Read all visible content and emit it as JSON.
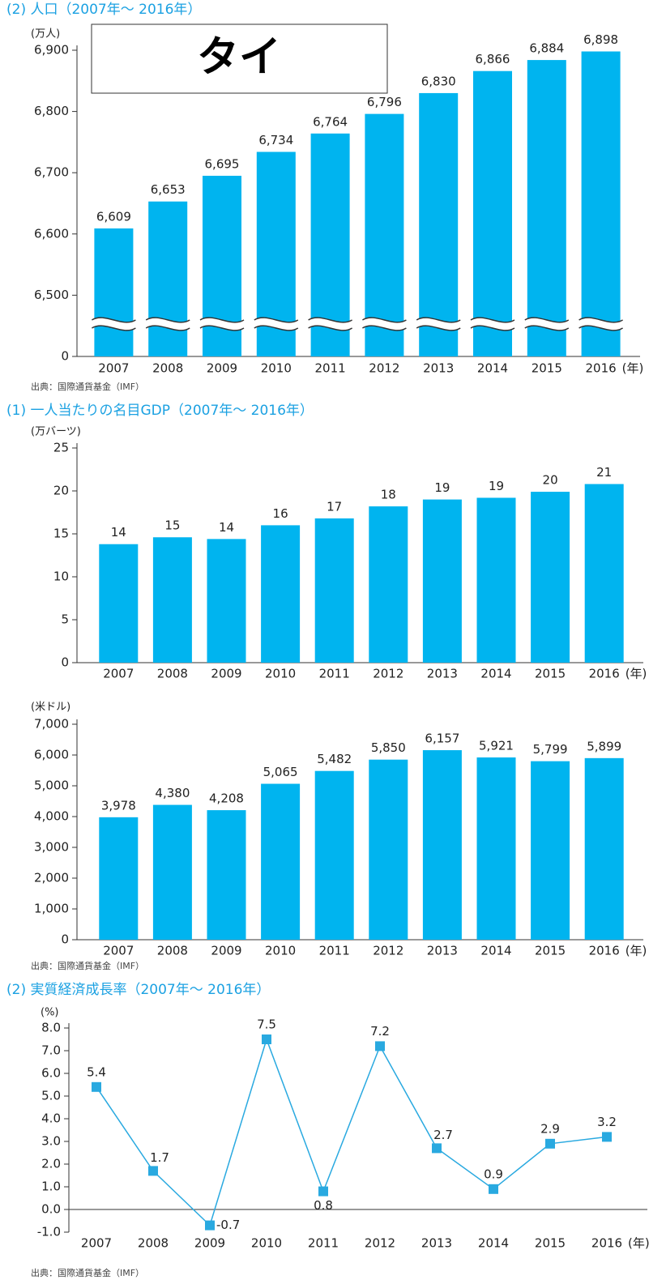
{
  "chart_data": [
    {
      "type": "bar",
      "title": "(2) 人口（2007年～ 2016年）",
      "annotation": "タイ",
      "y_unit": "(万人)",
      "x_unit": "(年)",
      "categories": [
        "2007",
        "2008",
        "2009",
        "2010",
        "2011",
        "2012",
        "2013",
        "2014",
        "2015",
        "2016"
      ],
      "values": [
        6609,
        6653,
        6695,
        6734,
        6764,
        6796,
        6830,
        6866,
        6884,
        6898
      ],
      "value_labels": [
        "6,609",
        "6,653",
        "6,695",
        "6,734",
        "6,764",
        "6,796",
        "6,830",
        "6,866",
        "6,884",
        "6,898"
      ],
      "color": "#00b4ef",
      "axis_break": true,
      "ylim": [
        0,
        6900
      ],
      "yticks": [
        0,
        {
          "value": 6500,
          "label": "6,500"
        },
        {
          "value": 6600,
          "label": "6,600"
        },
        {
          "value": 6700,
          "label": "6,700"
        },
        {
          "value": 6800,
          "label": "6,800"
        },
        {
          "value": 6900,
          "label": "6,900"
        }
      ],
      "source": "出典：国際通貨基金（IMF）"
    },
    {
      "type": "bar",
      "title": "(1) 一人当たりの名目GDP（2007年～ 2016年）",
      "y_unit": "(万バーツ)",
      "x_unit": "(年)",
      "categories": [
        "2007",
        "2008",
        "2009",
        "2010",
        "2011",
        "2012",
        "2013",
        "2014",
        "2015",
        "2016"
      ],
      "values": [
        13.8,
        14.6,
        14.4,
        16.0,
        16.8,
        18.2,
        19.0,
        19.2,
        19.9,
        20.8
      ],
      "value_labels": [
        "14",
        "15",
        "14",
        "16",
        "17",
        "18",
        "19",
        "19",
        "20",
        "21"
      ],
      "color": "#00b4ef",
      "ylim": [
        0,
        25
      ],
      "yticks": [
        0,
        5,
        10,
        15,
        20,
        25
      ]
    },
    {
      "type": "bar",
      "y_unit": "(米ドル)",
      "x_unit": "(年)",
      "categories": [
        "2007",
        "2008",
        "2009",
        "2010",
        "2011",
        "2012",
        "2013",
        "2014",
        "2015",
        "2016"
      ],
      "values": [
        3978,
        4380,
        4208,
        5065,
        5482,
        5850,
        6157,
        5921,
        5799,
        5899
      ],
      "value_labels": [
        "3,978",
        "4,380",
        "4,208",
        "5,065",
        "5,482",
        "5,850",
        "6,157",
        "5,921",
        "5,799",
        "5,899"
      ],
      "color": "#00b4ef",
      "ylim": [
        0,
        7000
      ],
      "yticks": [
        0,
        {
          "value": 1000,
          "label": "1,000"
        },
        {
          "value": 2000,
          "label": "2,000"
        },
        {
          "value": 3000,
          "label": "3,000"
        },
        {
          "value": 4000,
          "label": "4,000"
        },
        {
          "value": 5000,
          "label": "5,000"
        },
        {
          "value": 6000,
          "label": "6,000"
        },
        {
          "value": 7000,
          "label": "7,000"
        }
      ],
      "source": "出典：国際通貨基金（IMF）"
    },
    {
      "type": "line",
      "title": "(2) 実質経済成長率（2007年～ 2016年）",
      "y_unit": "(%)",
      "x_unit": "(年)",
      "categories": [
        "2007",
        "2008",
        "2009",
        "2010",
        "2011",
        "2012",
        "2013",
        "2014",
        "2015",
        "2016"
      ],
      "values": [
        5.4,
        1.7,
        -0.7,
        7.5,
        0.8,
        7.2,
        2.7,
        0.9,
        2.9,
        3.2
      ],
      "color": "#29a9e0",
      "ylim": [
        -1,
        8
      ],
      "yticks": [
        {
          "value": -1,
          "label": "-1.0"
        },
        {
          "value": 0,
          "label": "0.0"
        },
        {
          "value": 1,
          "label": "1.0"
        },
        {
          "value": 2,
          "label": "2.0"
        },
        {
          "value": 3,
          "label": "3.0"
        },
        {
          "value": 4,
          "label": "4.0"
        },
        {
          "value": 5,
          "label": "5.0"
        },
        {
          "value": 6,
          "label": "6.0"
        },
        {
          "value": 7,
          "label": "7.0"
        },
        {
          "value": 8,
          "label": "8.0"
        }
      ],
      "source": "出典：国際通貨基金（IMF）"
    }
  ]
}
